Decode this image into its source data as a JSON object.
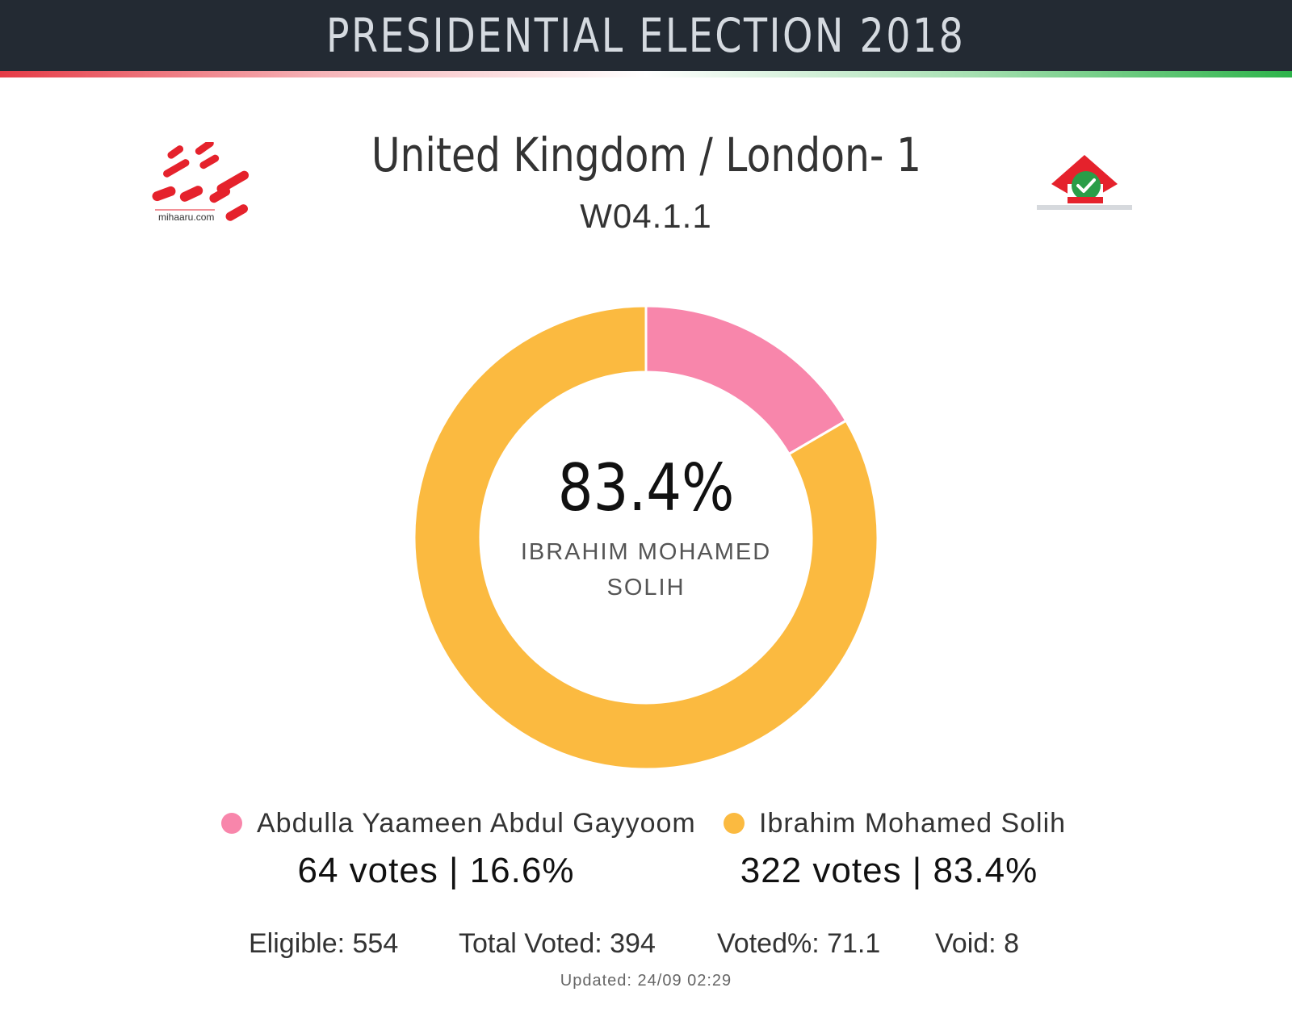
{
  "topbar": {
    "title": "PRESIDENTIAL ELECTION 2018"
  },
  "header": {
    "title": "United Kingdom / London- 1",
    "code": "W04.1.1",
    "logo_left_text": "mihaaru.com"
  },
  "center": {
    "value": "83.4%",
    "name": "IBRAHIM MOHAMED SOLIH"
  },
  "candidates": [
    {
      "name": "Abdulla Yaameen Abdul Gayyoom",
      "result": "64 votes | 16.6%",
      "color": "#f886ab"
    },
    {
      "name": "Ibrahim Mohamed Solih",
      "result": "322 votes | 83.4%",
      "color": "#fbba40"
    }
  ],
  "stats": {
    "eligible": "Eligible: 554",
    "total_voted": "Total Voted: 394",
    "voted_pct": "Voted%: 71.1",
    "void": "Void: 8"
  },
  "updated": "Updated: 24/09 02:29",
  "chart_data": {
    "type": "pie",
    "categories": [
      "Abdulla Yaameen Abdul Gayyoom",
      "Ibrahim Mohamed Solih"
    ],
    "values": [
      64,
      322
    ],
    "percentages": [
      16.6,
      83.4
    ],
    "colors": [
      "#f886ab",
      "#fbba40"
    ],
    "donut": true,
    "legend": "bottom"
  }
}
